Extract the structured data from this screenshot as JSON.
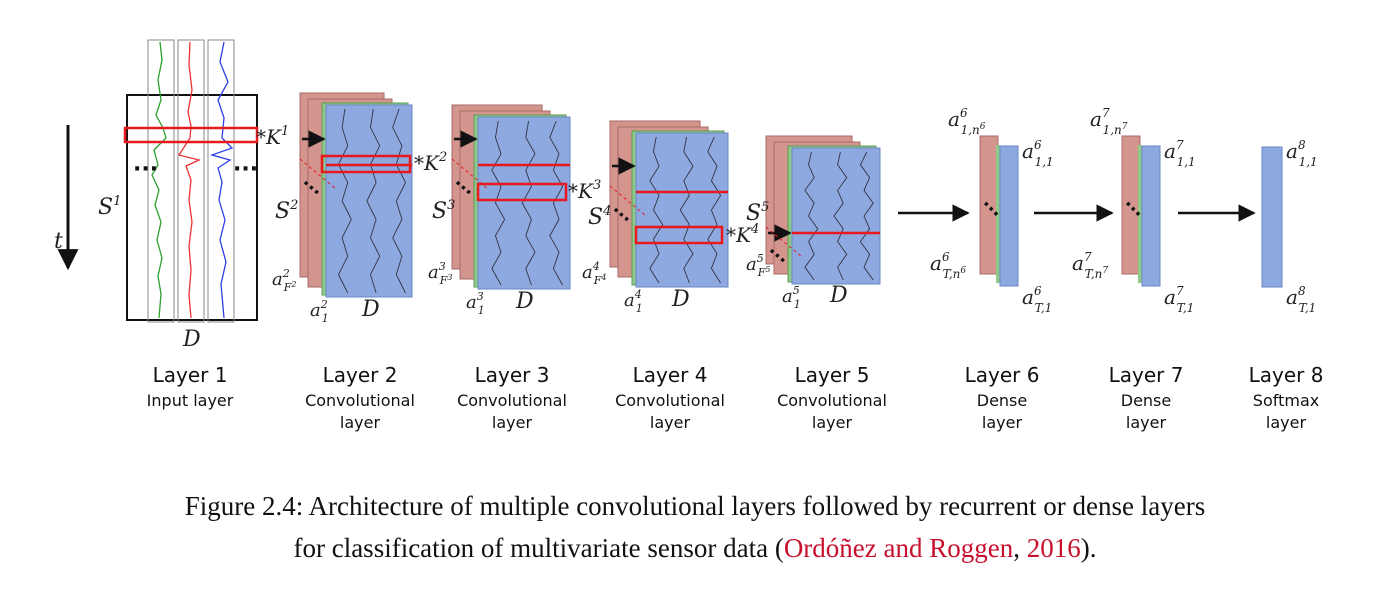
{
  "time_axis_label": "t",
  "input_layer": {
    "left_label": "S",
    "left_label_sup": "1",
    "bottom_label": "D",
    "kernel": "*K",
    "kernel_sup": "1"
  },
  "conv_layers": [
    {
      "s": "S",
      "s_sup": "2",
      "a_base": "a",
      "a_sup": "2",
      "a_sub": "F",
      "a_sub_sup": "2",
      "a1_sup": "2",
      "a1_sub": "1",
      "d": "D",
      "kernel": "*K",
      "kernel_sup": "2"
    },
    {
      "s": "S",
      "s_sup": "3",
      "a_base": "a",
      "a_sup": "3",
      "a_sub": "F",
      "a_sub_sup": "3",
      "a1_sup": "3",
      "a1_sub": "1",
      "d": "D",
      "kernel": "*K",
      "kernel_sup": "3"
    },
    {
      "s": "S",
      "s_sup": "4",
      "a_base": "a",
      "a_sup": "4",
      "a_sub": "F",
      "a_sub_sup": "4",
      "a1_sup": "4",
      "a1_sub": "1",
      "d": "D",
      "kernel": "*K",
      "kernel_sup": "4"
    },
    {
      "s": "S",
      "s_sup": "5",
      "a_base": "a",
      "a_sup": "5",
      "a_sub": "F",
      "a_sub_sup": "5",
      "a1_sup": "5",
      "a1_sub": "1",
      "d": "D"
    }
  ],
  "dense_layers": [
    {
      "top_sup": "6",
      "top_sub": "1,n",
      "top_sub_sup": "6",
      "right_top_sup": "6",
      "right_top_sub": "1,1",
      "bottom_sup": "6",
      "bottom_sub": "T,n",
      "bottom_sub_sup": "6",
      "right_bottom_sup": "6",
      "right_bottom_sub": "T,1"
    },
    {
      "top_sup": "7",
      "top_sub": "1,n",
      "top_sub_sup": "7",
      "right_top_sup": "7",
      "right_top_sub": "1,1",
      "bottom_sup": "7",
      "bottom_sub": "T,n",
      "bottom_sub_sup": "7",
      "right_bottom_sup": "7",
      "right_bottom_sub": "T,1"
    }
  ],
  "softmax_layer": {
    "top_sup": "8",
    "top_sub": "1,1",
    "bottom_sup": "8",
    "bottom_sub": "T,1"
  },
  "layer_labels": [
    {
      "name": "Layer 1",
      "desc1": "Input layer",
      "desc2": ""
    },
    {
      "name": "Layer 2",
      "desc1": "Convolutional",
      "desc2": "layer"
    },
    {
      "name": "Layer 3",
      "desc1": "Convolutional",
      "desc2": "layer"
    },
    {
      "name": "Layer 4",
      "desc1": "Convolutional",
      "desc2": "layer"
    },
    {
      "name": "Layer 5",
      "desc1": "Convolutional",
      "desc2": "layer"
    },
    {
      "name": "Layer 6",
      "desc1": "Dense",
      "desc2": "layer"
    },
    {
      "name": "Layer 7",
      "desc1": "Dense",
      "desc2": "layer"
    },
    {
      "name": "Layer 8",
      "desc1": "Softmax",
      "desc2": "layer"
    }
  ],
  "caption": {
    "line1": "Figure 2.4: Architecture of multiple convolutional layers followed by recurrent or dense layers",
    "line2_pre": "for classification of multivariate sensor data (",
    "cite_authors": "Ordóñez and Roggen",
    "line2_mid": ", ",
    "cite_year": "2016",
    "line2_post": ")."
  },
  "colors": {
    "feature_map_blue": "#8ea9e0",
    "feature_map_pink": "#d4958f",
    "feature_map_green": "#8ec98a",
    "highlight_red": "#e8191d",
    "signal_green": "#2ca02c",
    "signal_red": "#ee3333",
    "signal_blue": "#2f3fe8",
    "citation_red": "#c8102e"
  }
}
